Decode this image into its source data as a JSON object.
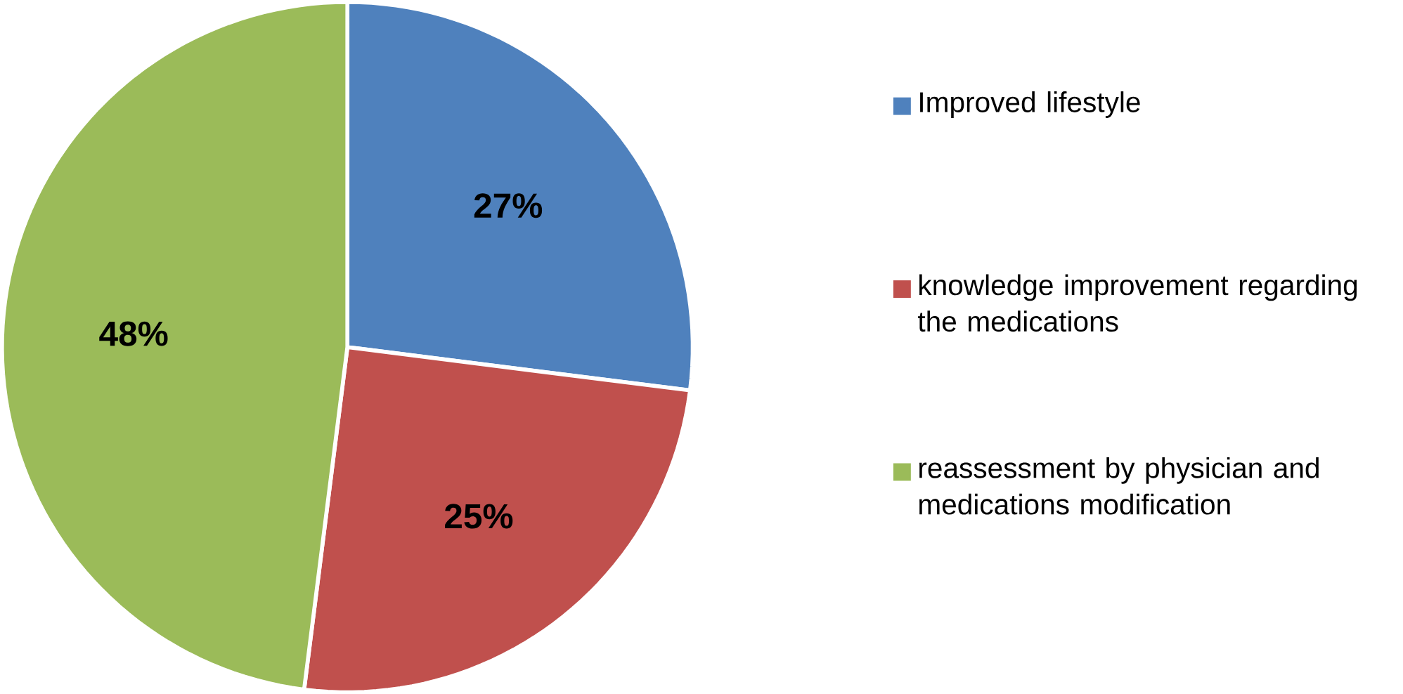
{
  "chart_data": {
    "type": "pie",
    "categories": [
      "Improved lifestyle",
      "knowledge improvement regarding the medications",
      "reassessment by physician and medications modification"
    ],
    "values": [
      27,
      25,
      48
    ],
    "colors": [
      "#4f81bd",
      "#c0504d",
      "#9bbb59"
    ],
    "value_labels": [
      "27%",
      "25%",
      "48%"
    ],
    "legend": "right"
  }
}
